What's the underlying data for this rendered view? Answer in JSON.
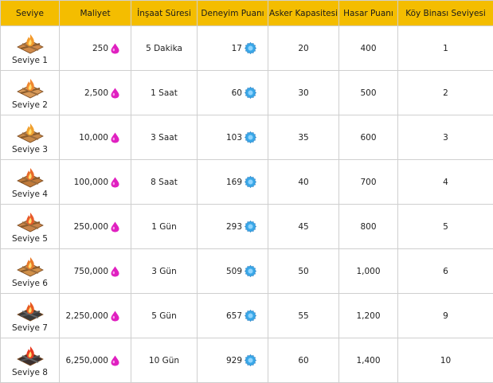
{
  "headers": [
    "Seviye",
    "Maliyet",
    "İnşaat Süresi",
    "Deneyim Puanı",
    "Asker Kapasitesi",
    "Hasar Puanı",
    "Köy Binası Seviyesi"
  ],
  "rows": [
    {
      "level": "Seviye 1",
      "cost": "250",
      "time": "5 Dakika",
      "xp": "17",
      "capacity": "20",
      "hp": "400",
      "townhall": "1",
      "fire": "#f39a2c",
      "base": "#d08a4a",
      "dark": false
    },
    {
      "level": "Seviye 2",
      "cost": "2,500",
      "time": "1 Saat",
      "xp": "60",
      "capacity": "30",
      "hp": "500",
      "townhall": "2",
      "fire": "#f08830",
      "base": "#d89a5a",
      "dark": false
    },
    {
      "level": "Seviye 3",
      "cost": "10,000",
      "time": "3 Saat",
      "xp": "103",
      "capacity": "35",
      "hp": "600",
      "townhall": "3",
      "fire": "#f0a030",
      "base": "#c88a4a",
      "dark": false
    },
    {
      "level": "Seviye 4",
      "cost": "100,000",
      "time": "8 Saat",
      "xp": "169",
      "capacity": "40",
      "hp": "700",
      "townhall": "4",
      "fire": "#e86a2a",
      "base": "#c07a3a",
      "dark": false
    },
    {
      "level": "Seviye 5",
      "cost": "250,000",
      "time": "1 Gün",
      "xp": "293",
      "capacity": "45",
      "hp": "800",
      "townhall": "5",
      "fire": "#e85a2a",
      "base": "#c8844a",
      "dark": false
    },
    {
      "level": "Seviye 6",
      "cost": "750,000",
      "time": "3 Gün",
      "xp": "509",
      "capacity": "50",
      "hp": "1,000",
      "townhall": "6",
      "fire": "#e87a2a",
      "base": "#d0904a",
      "dark": false
    },
    {
      "level": "Seviye 7",
      "cost": "2,250,000",
      "time": "5 Gün",
      "xp": "657",
      "capacity": "55",
      "hp": "1,200",
      "townhall": "9",
      "fire": "#e85a20",
      "base": "#3a3a3a",
      "dark": true
    },
    {
      "level": "Seviye 8",
      "cost": "6,250,000",
      "time": "10 Gün",
      "xp": "929",
      "capacity": "60",
      "hp": "1,400",
      "townhall": "10",
      "fire": "#e83a20",
      "base": "#3a3030",
      "dark": true
    }
  ],
  "icons": {
    "elixir": "elixir-drop-icon",
    "xp": "xp-star-icon",
    "building": "army-camp-icon"
  },
  "colors": {
    "header": "#f4bd00",
    "elixir": "#e020c0",
    "xp": "#3aa8e8"
  }
}
